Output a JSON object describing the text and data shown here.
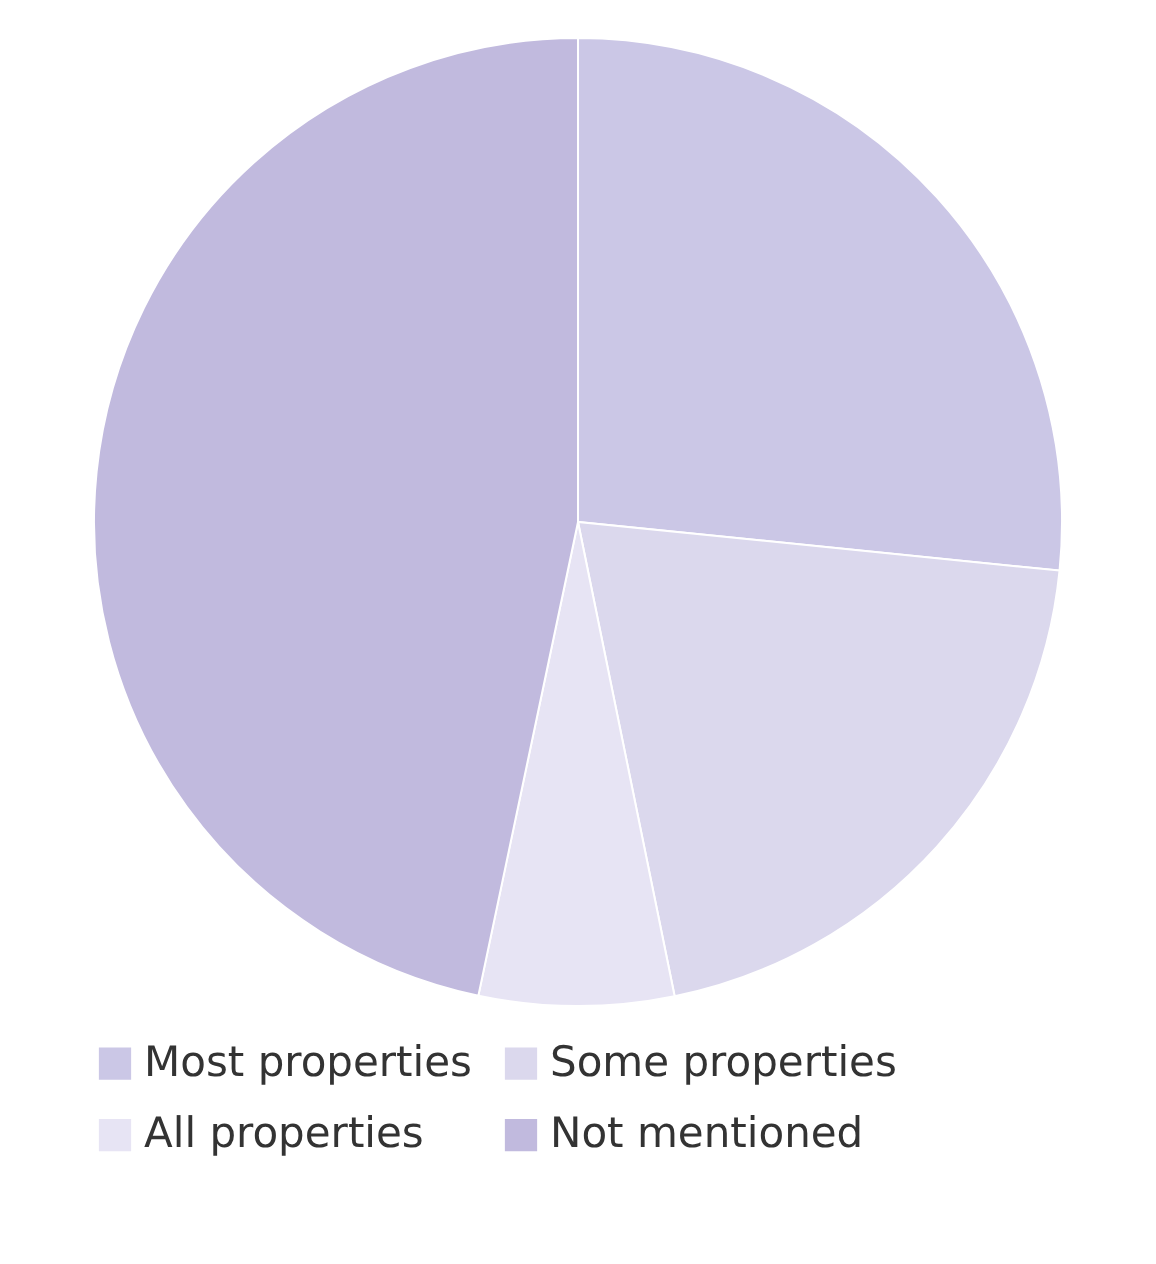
{
  "chart_data": {
    "type": "pie",
    "categories": [
      "Most properties",
      "Some properties",
      "All properties",
      "Not mentioned"
    ],
    "values": [
      26.6,
      20.2,
      6.5,
      46.7
    ],
    "colors": [
      "#cbc7e6",
      "#dbd8ed",
      "#e7e4f4",
      "#c1bade"
    ],
    "legend": "bottom"
  }
}
